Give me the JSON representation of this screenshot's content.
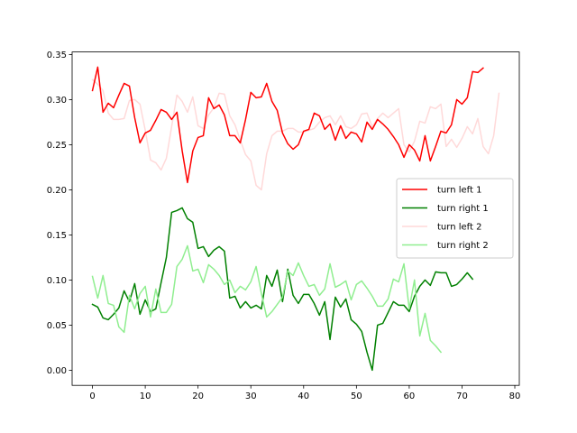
{
  "chart_data": {
    "type": "line",
    "title": "",
    "xlabel": "",
    "ylabel": "",
    "xlim": [
      -3.85,
      80.85
    ],
    "ylim": [
      -0.0168,
      0.3528
    ],
    "xticks": [
      0,
      10,
      20,
      30,
      40,
      50,
      60,
      70,
      80
    ],
    "yticks": [
      0.0,
      0.05,
      0.1,
      0.15,
      0.2,
      0.25,
      0.3,
      0.35
    ],
    "xtick_labels": [
      "0",
      "10",
      "20",
      "30",
      "40",
      "50",
      "60",
      "70",
      "80"
    ],
    "ytick_labels": [
      "0.00",
      "0.05",
      "0.10",
      "0.15",
      "0.20",
      "0.25",
      "0.30",
      "0.35"
    ],
    "grid": false,
    "legend_position": "center-right",
    "series": [
      {
        "name": "turn left 1",
        "color": "#ff0000",
        "opacity": 1,
        "values": [
          0.31,
          0.336,
          0.286,
          0.296,
          0.291,
          0.305,
          0.318,
          0.315,
          0.28,
          0.252,
          0.263,
          0.266,
          0.277,
          0.289,
          0.286,
          0.278,
          0.286,
          0.243,
          0.208,
          0.243,
          0.258,
          0.26,
          0.302,
          0.29,
          0.294,
          0.283,
          0.26,
          0.26,
          0.252,
          0.278,
          0.308,
          0.302,
          0.303,
          0.318,
          0.298,
          0.288,
          0.263,
          0.251,
          0.245,
          0.25,
          0.265,
          0.267,
          0.285,
          0.282,
          0.267,
          0.273,
          0.255,
          0.271,
          0.257,
          0.264,
          0.262,
          0.253,
          0.275,
          0.267,
          0.278,
          0.273,
          0.267,
          0.259,
          0.25,
          0.236,
          0.25,
          0.244,
          0.232,
          0.26,
          0.232,
          0.248,
          0.265,
          0.263,
          0.272,
          0.3,
          0.295,
          0.302,
          0.331,
          0.33,
          0.335
        ]
      },
      {
        "name": "turn right 1",
        "color": "#008000",
        "opacity": 1,
        "values": [
          0.073,
          0.07,
          0.058,
          0.056,
          0.062,
          0.069,
          0.088,
          0.076,
          0.096,
          0.062,
          0.078,
          0.065,
          0.068,
          0.097,
          0.125,
          0.175,
          0.177,
          0.18,
          0.168,
          0.164,
          0.135,
          0.137,
          0.126,
          0.133,
          0.137,
          0.132,
          0.08,
          0.082,
          0.069,
          0.076,
          0.069,
          0.072,
          0.068,
          0.105,
          0.093,
          0.111,
          0.076,
          0.112,
          0.083,
          0.074,
          0.084,
          0.084,
          0.074,
          0.061,
          0.076,
          0.034,
          0.081,
          0.07,
          0.079,
          0.056,
          0.051,
          0.043,
          0.02,
          0.0,
          0.05,
          0.052,
          0.064,
          0.076,
          0.072,
          0.072,
          0.065,
          0.082,
          0.093,
          0.1,
          0.094,
          0.109,
          0.108,
          0.108,
          0.093,
          0.095,
          0.101,
          0.108,
          0.101
        ]
      },
      {
        "name": "turn left 2",
        "color": "#ff0000",
        "opacity": 0.15,
        "values": [
          0.322,
          0.317,
          0.31,
          0.285,
          0.278,
          0.278,
          0.279,
          0.299,
          0.3,
          0.295,
          0.266,
          0.233,
          0.23,
          0.222,
          0.235,
          0.27,
          0.305,
          0.298,
          0.286,
          0.303,
          0.271,
          0.268,
          0.283,
          0.291,
          0.307,
          0.306,
          0.282,
          0.272,
          0.255,
          0.239,
          0.232,
          0.205,
          0.2,
          0.24,
          0.26,
          0.265,
          0.265,
          0.268,
          0.268,
          0.264,
          0.264,
          0.266,
          0.268,
          0.275,
          0.28,
          0.282,
          0.272,
          0.282,
          0.27,
          0.268,
          0.272,
          0.284,
          0.285,
          0.27,
          0.279,
          0.285,
          0.28,
          0.285,
          0.29,
          0.25,
          0.242,
          0.254,
          0.276,
          0.274,
          0.292,
          0.29,
          0.295,
          0.248,
          0.256,
          0.247,
          0.257,
          0.27,
          0.262,
          0.279,
          0.248,
          0.24,
          0.26,
          0.307
        ]
      },
      {
        "name": "turn right 2",
        "color": "#90ee90",
        "opacity": 1,
        "values": [
          0.104,
          0.08,
          0.105,
          0.074,
          0.072,
          0.048,
          0.042,
          0.083,
          0.068,
          0.085,
          0.093,
          0.059,
          0.09,
          0.064,
          0.064,
          0.073,
          0.115,
          0.123,
          0.138,
          0.11,
          0.112,
          0.097,
          0.117,
          0.112,
          0.105,
          0.095,
          0.1,
          0.086,
          0.093,
          0.089,
          0.098,
          0.115,
          0.085,
          0.059,
          0.065,
          0.073,
          0.081,
          0.11,
          0.105,
          0.119,
          0.105,
          0.093,
          0.095,
          0.083,
          0.09,
          0.118,
          0.092,
          0.095,
          0.099,
          0.078,
          0.095,
          0.099,
          0.091,
          0.082,
          0.071,
          0.071,
          0.079,
          0.101,
          0.098,
          0.118,
          0.068,
          0.1,
          0.038,
          0.063,
          0.033,
          0.027,
          0.02
        ]
      }
    ]
  }
}
